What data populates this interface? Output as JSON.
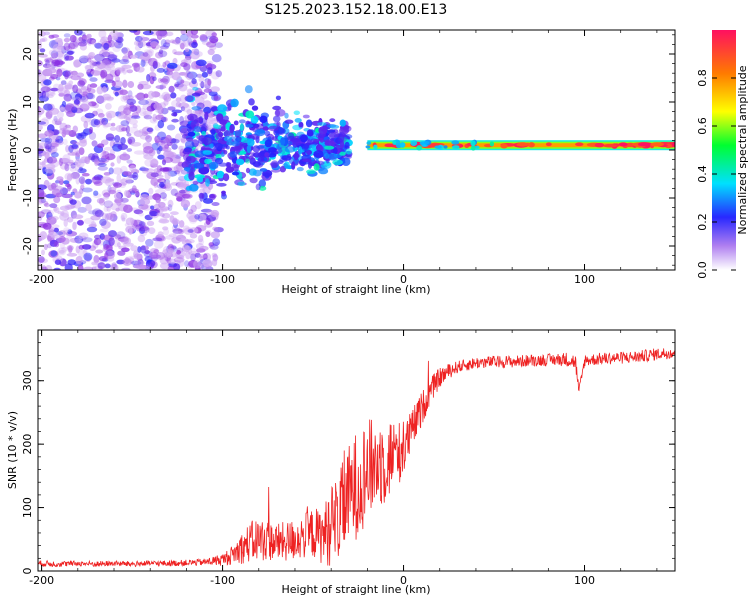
{
  "title": "S125.2023.152.18.00.E13",
  "colors": {
    "snr_line": "#ee2222",
    "background_point": "#7a1fd8",
    "ridge_core": "#ff1f5a"
  },
  "chart_data": [
    {
      "type": "heatmap",
      "title": "S125.2023.152.18.00.E13",
      "xlabel": "Height of straight line (km)",
      "ylabel": "Frequency (Hz)",
      "xlim": [
        -202,
        150
      ],
      "ylim": [
        -25,
        25
      ],
      "xticks": [
        -200,
        -100,
        0,
        100
      ],
      "xtick_labels": [
        "-200",
        "-100",
        "0",
        "100"
      ],
      "yticks": [
        -20,
        -10,
        0,
        10,
        20
      ],
      "ytick_labels": [
        "-20",
        "-10",
        "0",
        "10",
        "20"
      ],
      "colorbar": {
        "label": "Normalized spectral amplitude",
        "range": [
          0,
          1
        ],
        "ticks": [
          0,
          0.2,
          0.4,
          0.6,
          0.8
        ],
        "tick_labels": [
          "0.0",
          "0.2",
          "0.4",
          "0.6",
          "0.8"
        ],
        "colormap": [
          "#ffffff",
          "#8a2be2",
          "#2020ff",
          "#00e5ff",
          "#00ff30",
          "#ffff00",
          "#ff7a00",
          "#ff1060"
        ]
      },
      "regions": [
        {
          "name": "noise",
          "x": [
            -202,
            -102
          ],
          "y": [
            -25,
            25
          ],
          "amplitude": [
            0.05,
            0.3
          ]
        },
        {
          "name": "transition",
          "x": [
            -120,
            -30
          ],
          "y": [
            -9,
            9
          ],
          "amplitude": [
            0.2,
            0.5
          ]
        },
        {
          "name": "ridge",
          "x": [
            -20,
            150
          ],
          "y": [
            0,
            2
          ],
          "amplitude": [
            0.6,
            1.0
          ]
        }
      ],
      "ridge_center_hz": 1
    },
    {
      "type": "line",
      "xlabel": "Height of straight line (km)",
      "ylabel": "SNR (10 * v/v)",
      "xlim": [
        -202,
        150
      ],
      "ylim": [
        0,
        380
      ],
      "xticks": [
        -200,
        -100,
        0,
        100
      ],
      "xtick_labels": [
        "-200",
        "-100",
        "0",
        "100"
      ],
      "yticks": [
        0,
        100,
        200,
        300
      ],
      "ytick_labels": [
        "0",
        "100",
        "200",
        "300"
      ],
      "series": [
        {
          "name": "SNR",
          "x": [
            -202,
            -190,
            -180,
            -170,
            -160,
            -150,
            -140,
            -130,
            -120,
            -110,
            -100,
            -95,
            -90,
            -85,
            -80,
            -75,
            -70,
            -65,
            -60,
            -55,
            -50,
            -45,
            -40,
            -35,
            -30,
            -25,
            -20,
            -15,
            -10,
            -5,
            0,
            5,
            10,
            15,
            20,
            25,
            30,
            35,
            40,
            50,
            60,
            70,
            80,
            90,
            95,
            97,
            100,
            110,
            120,
            130,
            140,
            150
          ],
          "values": [
            12,
            11,
            12,
            11,
            12,
            11,
            12,
            12,
            13,
            14,
            18,
            25,
            35,
            45,
            50,
            48,
            45,
            46,
            50,
            55,
            60,
            55,
            70,
            90,
            120,
            140,
            160,
            170,
            175,
            185,
            190,
            225,
            255,
            285,
            305,
            315,
            322,
            325,
            328,
            330,
            330,
            332,
            333,
            334,
            330,
            280,
            332,
            335,
            336,
            338,
            342,
            345
          ],
          "spread": [
            6,
            6,
            5,
            6,
            5,
            6,
            5,
            6,
            6,
            7,
            12,
            18,
            30,
            40,
            45,
            40,
            38,
            40,
            42,
            45,
            50,
            55,
            80,
            90,
            100,
            110,
            100,
            90,
            90,
            70,
            55,
            40,
            35,
            25,
            20,
            15,
            12,
            12,
            12,
            12,
            12,
            12,
            12,
            14,
            16,
            14,
            12,
            12,
            12,
            12,
            12,
            12
          ]
        }
      ]
    }
  ]
}
